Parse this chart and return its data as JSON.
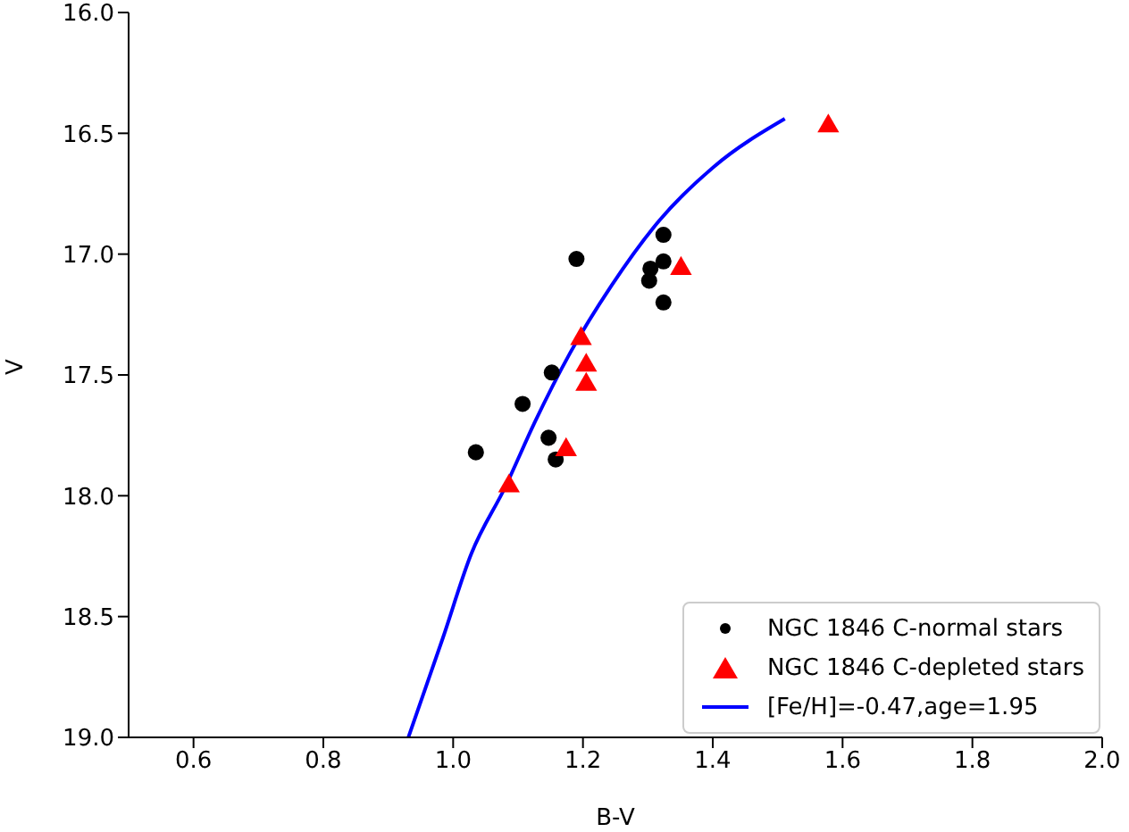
{
  "chart_data": {
    "type": "scatter",
    "xlabel": "B-V",
    "ylabel": "V",
    "xlim": [
      0.5,
      2.0
    ],
    "ylim": [
      19.0,
      16.0
    ],
    "xticks": [
      {
        "value": 0.6,
        "label": "0.6"
      },
      {
        "value": 0.8,
        "label": "0.8"
      },
      {
        "value": 1.0,
        "label": "1.0"
      },
      {
        "value": 1.2,
        "label": "1.2"
      },
      {
        "value": 1.4,
        "label": "1.4"
      },
      {
        "value": 1.6,
        "label": "1.6"
      },
      {
        "value": 1.8,
        "label": "1.8"
      },
      {
        "value": 2.0,
        "label": "2.0"
      }
    ],
    "yticks": [
      {
        "value": 16.0,
        "label": "16.0"
      },
      {
        "value": 16.5,
        "label": "16.5"
      },
      {
        "value": 17.0,
        "label": "17.0"
      },
      {
        "value": 17.5,
        "label": "17.5"
      },
      {
        "value": 18.0,
        "label": "18.0"
      },
      {
        "value": 18.5,
        "label": "18.5"
      },
      {
        "value": 19.0,
        "label": "19.0"
      }
    ],
    "legend": "bottom right",
    "grid": false,
    "series": [
      {
        "name": "NGC 1846 C-normal stars",
        "type": "scatter",
        "marker": "circle",
        "color": "#000000",
        "x": [
          1.035,
          1.107,
          1.152,
          1.19,
          1.147,
          1.158,
          1.324,
          1.324,
          1.304,
          1.302,
          1.324
        ],
        "values": [
          17.82,
          17.62,
          17.49,
          17.02,
          17.76,
          17.85,
          16.92,
          17.03,
          17.06,
          17.11,
          17.2
        ]
      },
      {
        "name": "NGC 1846 C-depleted stars",
        "type": "scatter",
        "marker": "triangle",
        "color": "#ff0000",
        "x": [
          1.086,
          1.174,
          1.197,
          1.205,
          1.205,
          1.351,
          1.578
        ],
        "values": [
          17.96,
          17.81,
          17.35,
          17.46,
          17.54,
          17.06,
          16.47
        ]
      },
      {
        "name": "[Fe/H]=-0.47,age=1.95",
        "type": "line",
        "marker": "none",
        "color": "#0000ff",
        "x": [
          0.931,
          0.984,
          1.028,
          1.081,
          1.125,
          1.18,
          1.244,
          1.318,
          1.401,
          1.511
        ],
        "values": [
          19.0,
          18.59,
          18.24,
          17.96,
          17.7,
          17.41,
          17.13,
          16.86,
          16.64,
          16.44
        ]
      }
    ]
  }
}
